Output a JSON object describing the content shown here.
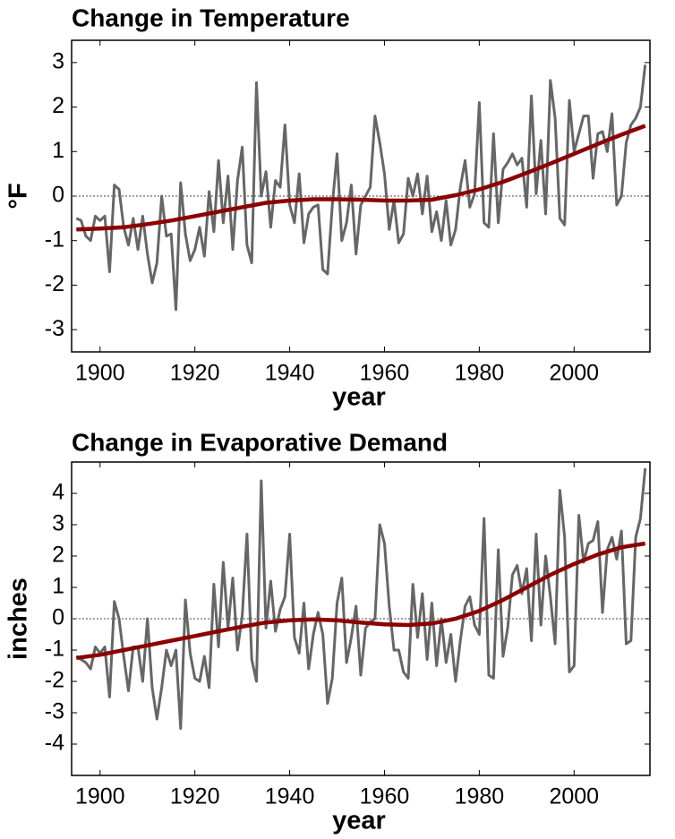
{
  "chart_data": [
    {
      "type": "line",
      "title": "Change in Temperature",
      "xlabel": "year",
      "ylabel": "°F",
      "xlim": [
        1894,
        2016
      ],
      "ylim": [
        -3.5,
        3.5
      ],
      "xticks": [
        1900,
        1920,
        1940,
        1960,
        1980,
        2000
      ],
      "yticks": [
        -3,
        -2,
        -1,
        0,
        1,
        2,
        3
      ],
      "reference_line": 0,
      "x": [
        1895,
        1896,
        1897,
        1898,
        1899,
        1900,
        1901,
        1902,
        1903,
        1904,
        1905,
        1906,
        1907,
        1908,
        1909,
        1910,
        1911,
        1912,
        1913,
        1914,
        1915,
        1916,
        1917,
        1918,
        1919,
        1920,
        1921,
        1922,
        1923,
        1924,
        1925,
        1926,
        1927,
        1928,
        1929,
        1930,
        1931,
        1932,
        1933,
        1934,
        1935,
        1936,
        1937,
        1938,
        1939,
        1940,
        1941,
        1942,
        1943,
        1944,
        1945,
        1946,
        1947,
        1948,
        1949,
        1950,
        1951,
        1952,
        1953,
        1954,
        1955,
        1956,
        1957,
        1958,
        1959,
        1960,
        1961,
        1962,
        1963,
        1964,
        1965,
        1966,
        1967,
        1968,
        1969,
        1970,
        1971,
        1972,
        1973,
        1974,
        1975,
        1976,
        1977,
        1978,
        1979,
        1980,
        1981,
        1982,
        1983,
        1984,
        1985,
        1986,
        1987,
        1988,
        1989,
        1990,
        1991,
        1992,
        1993,
        1994,
        1995,
        1996,
        1997,
        1998,
        1999,
        2000,
        2001,
        2002,
        2003,
        2004,
        2005,
        2006,
        2007,
        2008,
        2009,
        2010,
        2011,
        2012,
        2013,
        2014,
        2015
      ],
      "series": [
        {
          "color": "#666666",
          "values": [
            -0.5,
            -0.55,
            -0.9,
            -1.0,
            -0.45,
            -0.55,
            -0.45,
            -1.7,
            0.25,
            0.15,
            -0.7,
            -1.1,
            -0.5,
            -1.2,
            -0.45,
            -1.3,
            -1.95,
            -1.5,
            0.0,
            -0.9,
            -0.85,
            -2.55,
            0.3,
            -0.85,
            -1.45,
            -1.2,
            -0.7,
            -1.35,
            0.1,
            -0.8,
            0.8,
            -0.6,
            0.45,
            -1.2,
            0.35,
            1.1,
            -1.1,
            -1.5,
            2.55,
            0.0,
            0.55,
            -0.7,
            0.35,
            0.2,
            1.6,
            -0.2,
            -0.6,
            0.5,
            -1.05,
            -0.4,
            -0.25,
            -0.2,
            -1.65,
            -1.75,
            -0.2,
            0.95,
            -1.0,
            -0.6,
            0.25,
            -1.3,
            -0.2,
            0.0,
            0.2,
            1.8,
            1.2,
            0.5,
            -0.75,
            -0.1,
            -1.05,
            -0.85,
            0.4,
            0.0,
            0.5,
            -0.4,
            0.45,
            -0.8,
            -0.35,
            -1.0,
            -0.1,
            -1.1,
            -0.75,
            0.2,
            0.8,
            -0.25,
            0.05,
            2.1,
            -0.6,
            -0.7,
            1.4,
            -0.6,
            0.6,
            0.75,
            0.95,
            0.7,
            0.85,
            -0.25,
            2.25,
            0.05,
            1.25,
            -0.4,
            2.6,
            1.75,
            -0.5,
            -0.65,
            2.15,
            1.0,
            1.4,
            1.8,
            1.8,
            0.4,
            1.4,
            1.45,
            1.0,
            1.85,
            -0.2,
            0.0,
            1.2,
            1.6,
            1.75,
            2.0,
            2.95
          ]
        },
        {
          "color": "#8b0000",
          "x": [
            1895,
            1900,
            1905,
            1910,
            1915,
            1920,
            1925,
            1930,
            1935,
            1940,
            1945,
            1950,
            1955,
            1960,
            1965,
            1970,
            1975,
            1980,
            1985,
            1990,
            1995,
            2000,
            2005,
            2010,
            2015
          ],
          "values": [
            -0.75,
            -0.73,
            -0.7,
            -0.63,
            -0.55,
            -0.45,
            -0.35,
            -0.25,
            -0.15,
            -0.1,
            -0.07,
            -0.07,
            -0.08,
            -0.1,
            -0.1,
            -0.08,
            0.02,
            0.15,
            0.32,
            0.52,
            0.73,
            0.95,
            1.17,
            1.38,
            1.58
          ]
        }
      ]
    },
    {
      "type": "line",
      "title": "Change in Evaporative Demand",
      "xlabel": "year",
      "ylabel": "inches",
      "xlim": [
        1894,
        2016
      ],
      "ylim": [
        -5,
        5
      ],
      "xticks": [
        1900,
        1920,
        1940,
        1960,
        1980,
        2000
      ],
      "yticks": [
        -4,
        -3,
        -2,
        -1,
        0,
        1,
        2,
        3,
        4
      ],
      "reference_line": 0,
      "x": [
        1895,
        1896,
        1897,
        1898,
        1899,
        1900,
        1901,
        1902,
        1903,
        1904,
        1905,
        1906,
        1907,
        1908,
        1909,
        1910,
        1911,
        1912,
        1913,
        1914,
        1915,
        1916,
        1917,
        1918,
        1919,
        1920,
        1921,
        1922,
        1923,
        1924,
        1925,
        1926,
        1927,
        1928,
        1929,
        1930,
        1931,
        1932,
        1933,
        1934,
        1935,
        1936,
        1937,
        1938,
        1939,
        1940,
        1941,
        1942,
        1943,
        1944,
        1945,
        1946,
        1947,
        1948,
        1949,
        1950,
        1951,
        1952,
        1953,
        1954,
        1955,
        1956,
        1957,
        1958,
        1959,
        1960,
        1961,
        1962,
        1963,
        1964,
        1965,
        1966,
        1967,
        1968,
        1969,
        1970,
        1971,
        1972,
        1973,
        1974,
        1975,
        1976,
        1977,
        1978,
        1979,
        1980,
        1981,
        1982,
        1983,
        1984,
        1985,
        1986,
        1987,
        1988,
        1989,
        1990,
        1991,
        1992,
        1993,
        1994,
        1995,
        1996,
        1997,
        1998,
        1999,
        2000,
        2001,
        2002,
        2003,
        2004,
        2005,
        2006,
        2007,
        2008,
        2009,
        2010,
        2011,
        2012,
        2013,
        2014,
        2015
      ],
      "series": [
        {
          "color": "#666666",
          "values": [
            -1.2,
            -1.3,
            -1.4,
            -1.6,
            -0.9,
            -1.1,
            -0.9,
            -2.5,
            0.55,
            0.0,
            -1.2,
            -2.3,
            -0.9,
            -0.9,
            -2.0,
            0.0,
            -2.2,
            -3.2,
            -2.2,
            -1.0,
            -1.5,
            -1.0,
            -3.5,
            0.6,
            -1.1,
            -1.9,
            -2.0,
            -1.2,
            -2.2,
            1.1,
            -0.9,
            1.8,
            -0.3,
            1.3,
            -1.0,
            0.1,
            2.7,
            -1.3,
            -2.0,
            4.4,
            -0.3,
            1.2,
            -0.4,
            0.3,
            0.7,
            2.7,
            -0.6,
            -1.1,
            0.5,
            -1.6,
            -0.5,
            0.2,
            -0.5,
            -2.7,
            -1.9,
            0.5,
            1.3,
            -1.4,
            -0.6,
            0.4,
            -1.8,
            -0.3,
            -0.1,
            0.0,
            3.0,
            2.4,
            0.4,
            -1.0,
            -1.0,
            -1.7,
            -1.9,
            1.1,
            -0.6,
            0.8,
            -1.3,
            0.5,
            -1.5,
            0.0,
            -1.4,
            -0.5,
            -2.0,
            -0.7,
            0.4,
            0.7,
            -0.2,
            -0.5,
            3.2,
            -1.8,
            -1.9,
            2.2,
            -1.2,
            -0.3,
            1.4,
            1.7,
            0.8,
            1.6,
            -0.7,
            2.7,
            -0.2,
            2.0,
            0.7,
            -0.8,
            4.1,
            2.6,
            -1.7,
            -1.5,
            3.3,
            1.8,
            2.4,
            2.5,
            3.1,
            0.2,
            2.2,
            2.6,
            1.9,
            2.8,
            -0.8,
            -0.7,
            2.6,
            3.2,
            4.8
          ]
        },
        {
          "color": "#8b0000",
          "x": [
            1895,
            1900,
            1905,
            1910,
            1915,
            1920,
            1925,
            1930,
            1935,
            1940,
            1945,
            1950,
            1955,
            1960,
            1965,
            1970,
            1975,
            1980,
            1985,
            1990,
            1995,
            2000,
            2005,
            2010,
            2015
          ],
          "values": [
            -1.25,
            -1.15,
            -1.0,
            -0.85,
            -0.7,
            -0.55,
            -0.4,
            -0.25,
            -0.12,
            -0.05,
            -0.02,
            -0.05,
            -0.12,
            -0.18,
            -0.2,
            -0.15,
            0.0,
            0.25,
            0.6,
            1.0,
            1.4,
            1.75,
            2.05,
            2.28,
            2.4
          ]
        }
      ]
    }
  ]
}
